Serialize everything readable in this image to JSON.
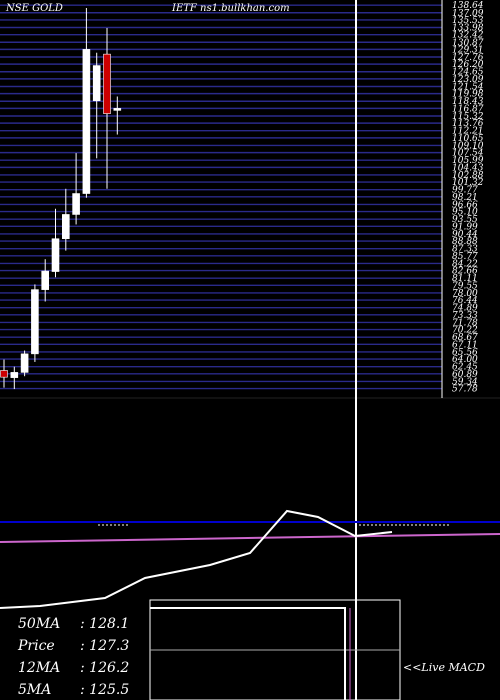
{
  "header": {
    "ticker": "NSE GOLD",
    "source": "IETF ns1.bullkhan.com"
  },
  "chart_data": {
    "type": "candlestick",
    "price_axis": {
      "ylim": [
        57.7,
        138.0
      ],
      "ticks": [
        138.6,
        137.0,
        135.5,
        133.9,
        132.4,
        130.8,
        129.3,
        127.7,
        126.2,
        124.6,
        123.1,
        121.5,
        120.0,
        118.4,
        116.9,
        115.3,
        113.8,
        112.2,
        110.7,
        109.1,
        107.6,
        106.0,
        104.5,
        102.9,
        101.4,
        99.8,
        98.3,
        96.7,
        95.2,
        93.6,
        92.1,
        90.5,
        89.0,
        87.4,
        85.9,
        84.3,
        82.8,
        81.2,
        79.7,
        78.1,
        76.6,
        75.0,
        73.5,
        71.9,
        70.4,
        68.8,
        67.3,
        65.7,
        64.2,
        62.6,
        61.1,
        59.5,
        58.0
      ],
      "tick_labels": [
        "138.64",
        "137.09",
        "135.53",
        "133.98",
        "132.42",
        "130.87",
        "129.31",
        "127.76",
        "126.20",
        "124.65",
        "123.09",
        "121.54",
        "119.98",
        "118.43",
        "116.87",
        "115.32",
        "113.76",
        "112.21",
        "110.65",
        "109.10",
        "107.54",
        "105.99",
        "104.43",
        "102.88",
        "101.32",
        "99.77",
        "98.21",
        "96.66",
        "95.10",
        "93.55",
        "91.99",
        "90.44",
        "88.88",
        "87.33",
        "85.77",
        "84.22",
        "82.66",
        "81.11",
        "79.55",
        "78.00",
        "76.44",
        "74.89",
        "73.33",
        "71.78",
        "70.22",
        "68.67",
        "67.11",
        "65.56",
        "64.00",
        "62.45",
        "60.89",
        "59.34",
        "57.78"
      ]
    },
    "candles": [
      {
        "open": 61.8,
        "high": 64.1,
        "low": 58.2,
        "close": 60.4,
        "color": "#cc0000"
      },
      {
        "open": 60.3,
        "high": 62.6,
        "low": 57.9,
        "close": 61.4,
        "color": "#ffffff"
      },
      {
        "open": 61.4,
        "high": 66.0,
        "low": 60.6,
        "close": 65.3,
        "color": "#ffffff"
      },
      {
        "open": 65.3,
        "high": 79.9,
        "low": 63.6,
        "close": 78.8,
        "color": "#ffffff"
      },
      {
        "open": 78.8,
        "high": 85.2,
        "low": 76.3,
        "close": 82.7,
        "color": "#ffffff"
      },
      {
        "open": 82.6,
        "high": 95.8,
        "low": 81.4,
        "close": 89.5,
        "color": "#ffffff"
      },
      {
        "open": 89.5,
        "high": 100.0,
        "low": 87.0,
        "close": 94.6,
        "color": "#ffffff"
      },
      {
        "open": 94.6,
        "high": 107.5,
        "low": 92.5,
        "close": 99.0,
        "color": "#ffffff"
      },
      {
        "open": 99.0,
        "high": 138.0,
        "low": 98.1,
        "close": 129.3,
        "color": "#ffffff"
      },
      {
        "open": 118.5,
        "high": 128.6,
        "low": 106.4,
        "close": 125.9,
        "color": "#ffffff"
      },
      {
        "open": 128.3,
        "high": 133.8,
        "low": 100.0,
        "close": 115.8,
        "color": "#cc0000"
      },
      {
        "open": 116.9,
        "high": 119.4,
        "low": 111.4,
        "close": 116.6,
        "color": "#ffffff"
      }
    ],
    "moving_averages": [
      {
        "label": "50MA",
        "value": "128.1"
      },
      {
        "label": "Price",
        "value": "127.3"
      },
      {
        "label": "12MA",
        "value": "126.2"
      },
      {
        "label": "5MA",
        "value": "125.5"
      }
    ],
    "indicator": {
      "white_line": [
        [
          0,
          608
        ],
        [
          40,
          606
        ],
        [
          105,
          598
        ],
        [
          145,
          578
        ],
        [
          210,
          565
        ],
        [
          250,
          553
        ],
        [
          287,
          511
        ],
        [
          318,
          517
        ],
        [
          355,
          536
        ],
        [
          392,
          532
        ]
      ],
      "blue_line": [
        [
          0,
          522
        ],
        [
          500,
          522
        ]
      ],
      "magenta_line": [
        [
          0,
          542
        ],
        [
          500,
          534
        ]
      ],
      "blue_dotted": [
        [
          98,
          525
        ],
        [
          128,
          525
        ],
        [
          355,
          525
        ],
        [
          450,
          525
        ]
      ],
      "blue_color": "#0000cc",
      "magenta_color": "#cc66cc"
    },
    "macd": {
      "label": "<<Live MACD",
      "line_level": 0.92,
      "histogram_level": 0.0
    }
  }
}
